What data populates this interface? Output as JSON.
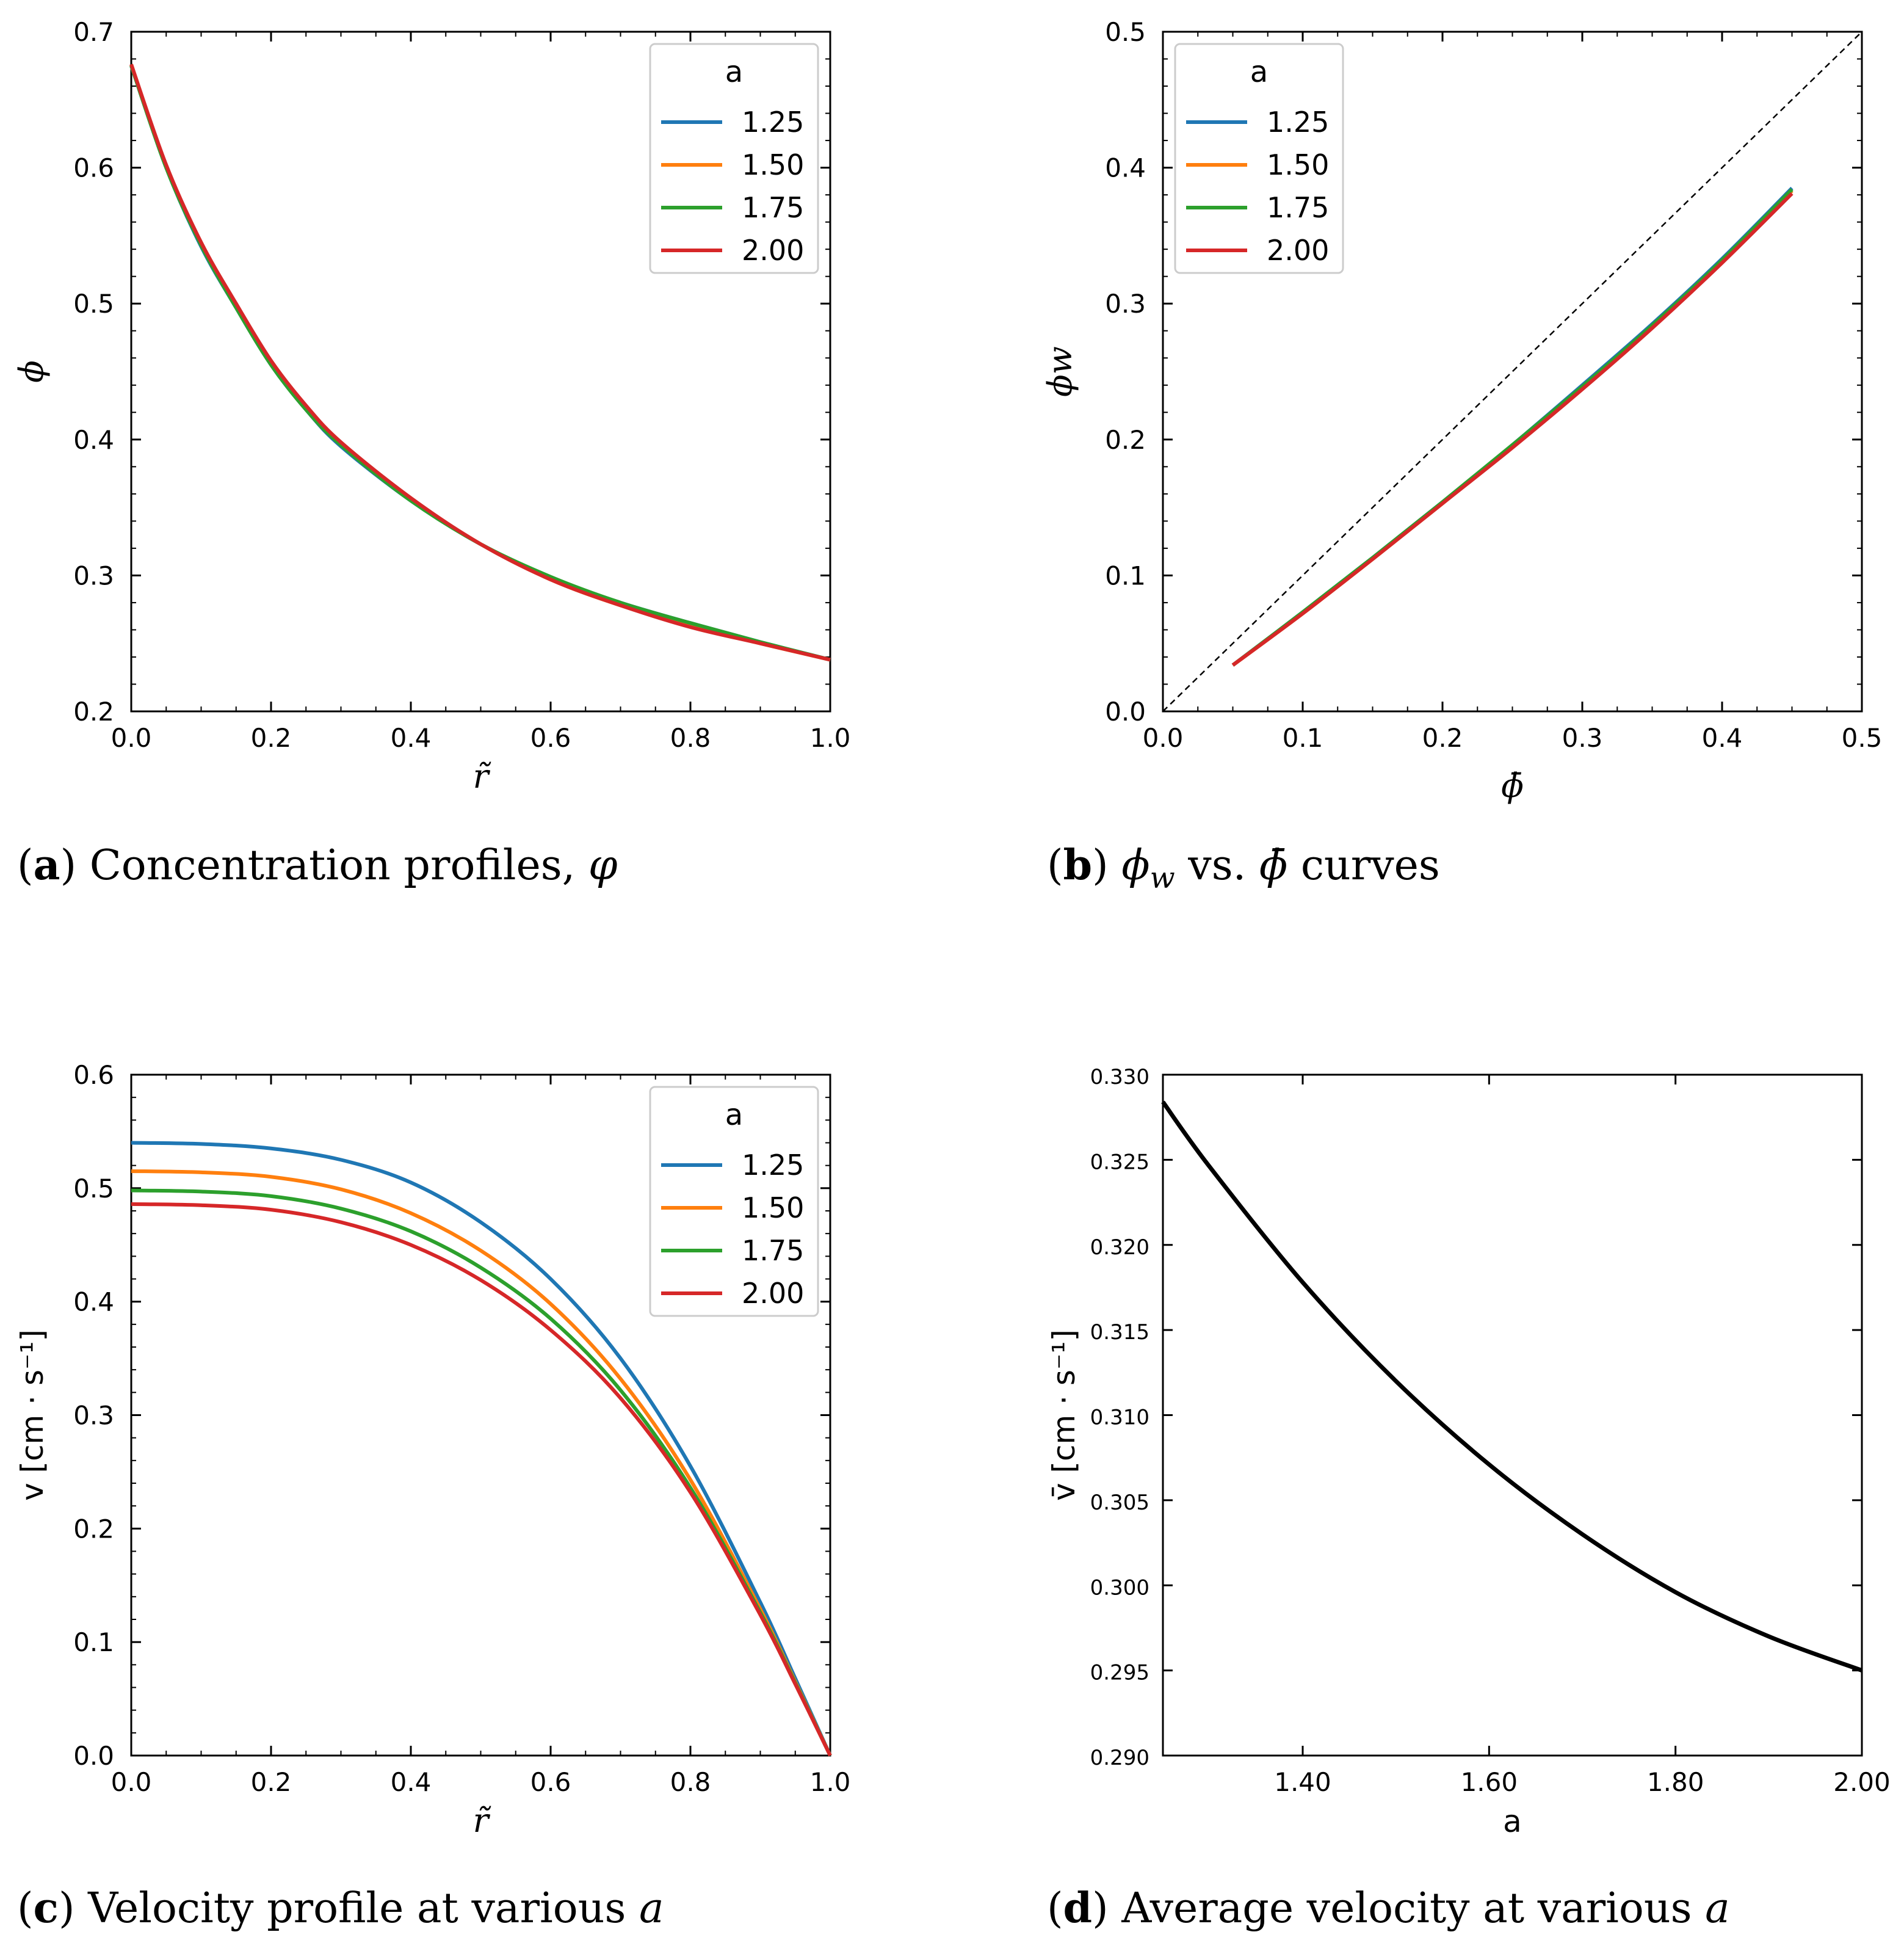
{
  "colors": {
    "a125": "#1f77b4",
    "a150": "#ff7f0e",
    "a175": "#2ca02c",
    "a200": "#d62728",
    "black": "#000000"
  },
  "chart_data": [
    {
      "id": "a",
      "type": "line",
      "caption": {
        "label": "a",
        "text": "Concentration profiles, ",
        "math": "φ"
      },
      "xlabel": "r̃",
      "ylabel": "ϕ",
      "xlim": [
        0.0,
        1.0
      ],
      "ylim": [
        0.2,
        0.7
      ],
      "xticks": [
        "0.0",
        "0.2",
        "0.4",
        "0.6",
        "0.8",
        "1.0"
      ],
      "yticks": [
        "0.2",
        "0.3",
        "0.4",
        "0.5",
        "0.6",
        "0.7"
      ],
      "legend": {
        "title": "a",
        "placement": "top-right"
      },
      "x": [
        0.0,
        0.05,
        0.1,
        0.15,
        0.2,
        0.25,
        0.3,
        0.4,
        0.5,
        0.6,
        0.7,
        0.8,
        0.9,
        1.0
      ],
      "series": [
        {
          "name": "1.25",
          "color": "#1f77b4",
          "values": [
            0.675,
            0.6,
            0.542,
            0.497,
            0.455,
            0.422,
            0.395,
            0.355,
            0.323,
            0.298,
            0.28,
            0.265,
            0.251,
            0.238
          ]
        },
        {
          "name": "1.50",
          "color": "#ff7f0e",
          "values": [
            0.676,
            0.601,
            0.544,
            0.498,
            0.457,
            0.424,
            0.397,
            0.356,
            0.323,
            0.297,
            0.278,
            0.263,
            0.25,
            0.238
          ]
        },
        {
          "name": "1.75",
          "color": "#2ca02c",
          "values": [
            0.675,
            0.6,
            0.543,
            0.497,
            0.455,
            0.422,
            0.396,
            0.355,
            0.323,
            0.299,
            0.28,
            0.265,
            0.251,
            0.238
          ]
        },
        {
          "name": "2.00",
          "color": "#d62728",
          "values": [
            0.676,
            0.602,
            0.545,
            0.5,
            0.458,
            0.425,
            0.398,
            0.357,
            0.323,
            0.297,
            0.278,
            0.262,
            0.25,
            0.238
          ]
        }
      ]
    },
    {
      "id": "b",
      "type": "line",
      "caption": {
        "label": "b",
        "text": " vs. ",
        "math_1": "ϕ",
        "sub": "w",
        "math_2": "ϕ̄",
        "text_2": " curves"
      },
      "xlabel": "ϕ̄",
      "ylabel": "ϕw",
      "xlim": [
        0.0,
        0.5
      ],
      "ylim": [
        0.0,
        0.5
      ],
      "xticks": [
        "0.0",
        "0.1",
        "0.2",
        "0.3",
        "0.4",
        "0.5"
      ],
      "yticks": [
        "0.0",
        "0.1",
        "0.2",
        "0.3",
        "0.4",
        "0.5"
      ],
      "legend": {
        "title": "a",
        "placement": "top-left"
      },
      "reference_line": {
        "style": "dashed",
        "x": [
          0.0,
          0.5
        ],
        "y": [
          0.0,
          0.5
        ]
      },
      "x": [
        0.05,
        0.1,
        0.15,
        0.2,
        0.25,
        0.3,
        0.35,
        0.4,
        0.45
      ],
      "series": [
        {
          "name": "1.25",
          "color": "#1f77b4",
          "values": [
            0.034,
            0.073,
            0.113,
            0.154,
            0.196,
            0.24,
            0.285,
            0.333,
            0.385
          ]
        },
        {
          "name": "1.50",
          "color": "#ff7f0e",
          "values": [
            0.034,
            0.072,
            0.112,
            0.153,
            0.195,
            0.238,
            0.283,
            0.331,
            0.383
          ]
        },
        {
          "name": "1.75",
          "color": "#2ca02c",
          "values": [
            0.034,
            0.073,
            0.113,
            0.154,
            0.196,
            0.239,
            0.284,
            0.332,
            0.384
          ]
        },
        {
          "name": "2.00",
          "color": "#d62728",
          "values": [
            0.034,
            0.072,
            0.112,
            0.153,
            0.194,
            0.237,
            0.282,
            0.33,
            0.381
          ]
        }
      ]
    },
    {
      "id": "c",
      "type": "line",
      "caption": {
        "label": "c",
        "text": "Velocity profile at various ",
        "math": "a"
      },
      "xlabel": "r̃",
      "ylabel": "v [cm · s⁻¹]",
      "xlim": [
        0.0,
        1.0
      ],
      "ylim": [
        0.0,
        0.6
      ],
      "xticks": [
        "0.0",
        "0.2",
        "0.4",
        "0.6",
        "0.8",
        "1.0"
      ],
      "yticks": [
        "0.0",
        "0.1",
        "0.2",
        "0.3",
        "0.4",
        "0.5",
        "0.6"
      ],
      "legend": {
        "title": "a",
        "placement": "top-right"
      },
      "x": [
        0.0,
        0.1,
        0.2,
        0.3,
        0.4,
        0.5,
        0.6,
        0.7,
        0.8,
        0.9,
        0.95,
        1.0
      ],
      "series": [
        {
          "name": "1.25",
          "color": "#1f77b4",
          "values": [
            0.54,
            0.539,
            0.535,
            0.525,
            0.505,
            0.47,
            0.42,
            0.35,
            0.255,
            0.135,
            0.068,
            0.0
          ]
        },
        {
          "name": "1.50",
          "color": "#ff7f0e",
          "values": [
            0.515,
            0.514,
            0.51,
            0.499,
            0.478,
            0.445,
            0.398,
            0.332,
            0.243,
            0.129,
            0.065,
            0.0
          ]
        },
        {
          "name": "1.75",
          "color": "#2ca02c",
          "values": [
            0.498,
            0.497,
            0.493,
            0.482,
            0.462,
            0.43,
            0.385,
            0.322,
            0.236,
            0.126,
            0.064,
            0.0
          ]
        },
        {
          "name": "2.00",
          "color": "#d62728",
          "values": [
            0.486,
            0.485,
            0.481,
            0.47,
            0.45,
            0.419,
            0.375,
            0.315,
            0.232,
            0.124,
            0.063,
            0.0
          ]
        }
      ]
    },
    {
      "id": "d",
      "type": "line",
      "caption": {
        "label": "d",
        "text": "Average velocity at various ",
        "math": "a"
      },
      "xlabel": "a",
      "ylabel": "v̄ [cm · s⁻¹]",
      "xlim": [
        1.25,
        2.0
      ],
      "ylim": [
        0.29,
        0.33
      ],
      "xticks": [
        "1.40",
        "1.60",
        "1.80",
        "2.00"
      ],
      "xtick_values": [
        1.4,
        1.6,
        1.8,
        2.0
      ],
      "yticks": [
        "0.290",
        "0.295",
        "0.300",
        "0.305",
        "0.310",
        "0.315",
        "0.320",
        "0.325",
        "0.330"
      ],
      "legend": null,
      "x": [
        1.25,
        1.3,
        1.4,
        1.5,
        1.6,
        1.7,
        1.8,
        1.9,
        2.0
      ],
      "series": [
        {
          "name": "v̄",
          "color": "#000000",
          "values": [
            0.3284,
            0.3246,
            0.3178,
            0.312,
            0.3071,
            0.303,
            0.2996,
            0.297,
            0.295
          ]
        }
      ]
    }
  ]
}
